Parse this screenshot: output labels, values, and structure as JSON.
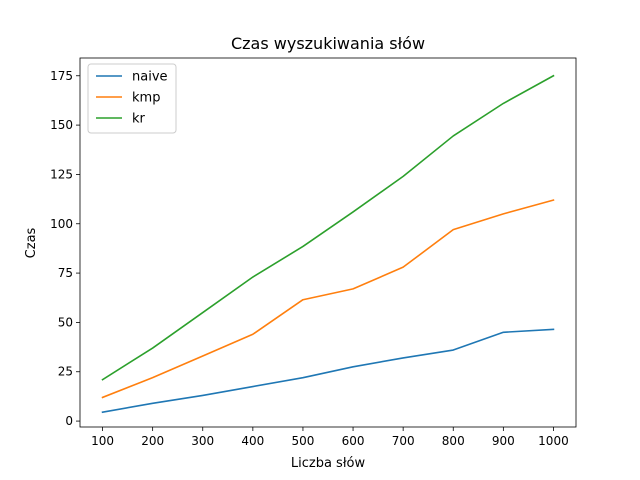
{
  "chart_data": {
    "type": "line",
    "title": "Czas wyszukiwania słów",
    "xlabel": "Liczba słów",
    "ylabel": "Czas",
    "x": [
      100,
      200,
      300,
      400,
      500,
      600,
      700,
      800,
      900,
      1000
    ],
    "x_ticks": [
      "100",
      "200",
      "300",
      "400",
      "500",
      "600",
      "700",
      "800",
      "900",
      "1000"
    ],
    "y_ticks": [
      "0",
      "25",
      "50",
      "75",
      "100",
      "125",
      "150",
      "175"
    ],
    "xlim": [
      55,
      1045
    ],
    "ylim": [
      -3,
      184
    ],
    "grid": false,
    "legend_position": "top-left",
    "series": [
      {
        "name": "naive",
        "color": "#1f77b4",
        "values": [
          4.5,
          9,
          13,
          17.5,
          22,
          27.5,
          32,
          36,
          45,
          46.5
        ]
      },
      {
        "name": "kmp",
        "color": "#ff7f0e",
        "values": [
          12,
          22,
          33,
          44,
          61.5,
          67,
          78,
          97,
          105,
          112
        ]
      },
      {
        "name": "kr",
        "color": "#2ca02c",
        "values": [
          21,
          37,
          55,
          73,
          88.5,
          106,
          124,
          144.5,
          161,
          175
        ]
      }
    ]
  }
}
